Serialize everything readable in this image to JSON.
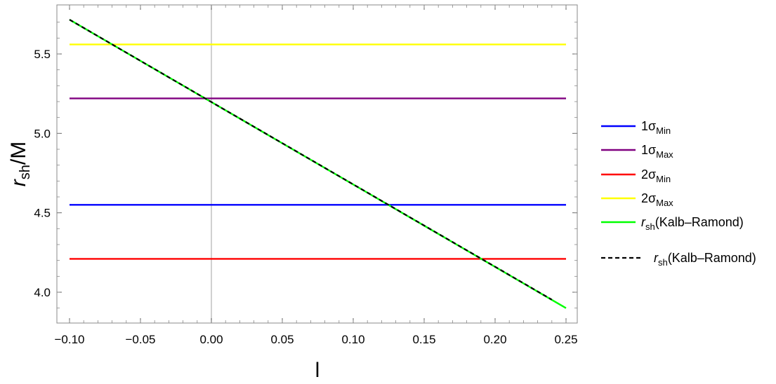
{
  "chart_data": {
    "type": "line",
    "xlabel": "l",
    "ylabel": {
      "main": "r",
      "sub": "sh",
      "suffix": "/M"
    },
    "xlim": [
      -0.1,
      0.25
    ],
    "ylim": [
      3.85,
      5.78
    ],
    "xticks": [
      -0.1,
      -0.05,
      0.0,
      0.05,
      0.1,
      0.15,
      0.2,
      0.25
    ],
    "xtick_labels": [
      "−0.10",
      "−0.05",
      "0.00",
      "0.05",
      "0.10",
      "0.15",
      "0.20",
      "0.25"
    ],
    "yticks": [
      4.0,
      4.5,
      5.0,
      5.5
    ],
    "ytick_labels": [
      "4.0",
      "4.5",
      "5.0",
      "5.5"
    ],
    "grid": false,
    "reference_line_x": 0.0,
    "legend_placement": "right",
    "series": [
      {
        "name": {
          "main": "1σ",
          "sub": "Min"
        },
        "color": "#0000ff",
        "dash": "solid",
        "x": [
          -0.1,
          0.25
        ],
        "y": [
          4.55,
          4.55
        ]
      },
      {
        "name": {
          "main": "1σ",
          "sub": "Max"
        },
        "color": "#800080",
        "dash": "solid",
        "x": [
          -0.1,
          0.25
        ],
        "y": [
          5.22,
          5.22
        ]
      },
      {
        "name": {
          "main": "2σ",
          "sub": "Min"
        },
        "color": "#ff0000",
        "dash": "solid",
        "x": [
          -0.1,
          0.25
        ],
        "y": [
          4.21,
          4.21
        ]
      },
      {
        "name": {
          "main": "2σ",
          "sub": "Max"
        },
        "color": "#ffff00",
        "dash": "solid",
        "x": [
          -0.1,
          0.25
        ],
        "y": [
          5.56,
          5.56
        ]
      },
      {
        "name": {
          "main": "r",
          "sub": "sh",
          "suffix": "(Kalb–Ramond)"
        },
        "color": "#00ff00",
        "dash": "solid",
        "x": [
          -0.1,
          0.25
        ],
        "y": [
          5.716,
          3.9
        ]
      },
      {
        "name": {
          "main": "r",
          "sub": "sh",
          "suffix": "(Kalb–Ramond)"
        },
        "color": "#000000",
        "dash": "dashed",
        "x": [
          -0.1,
          0.24
        ],
        "y": [
          5.716,
          3.953
        ]
      }
    ]
  }
}
